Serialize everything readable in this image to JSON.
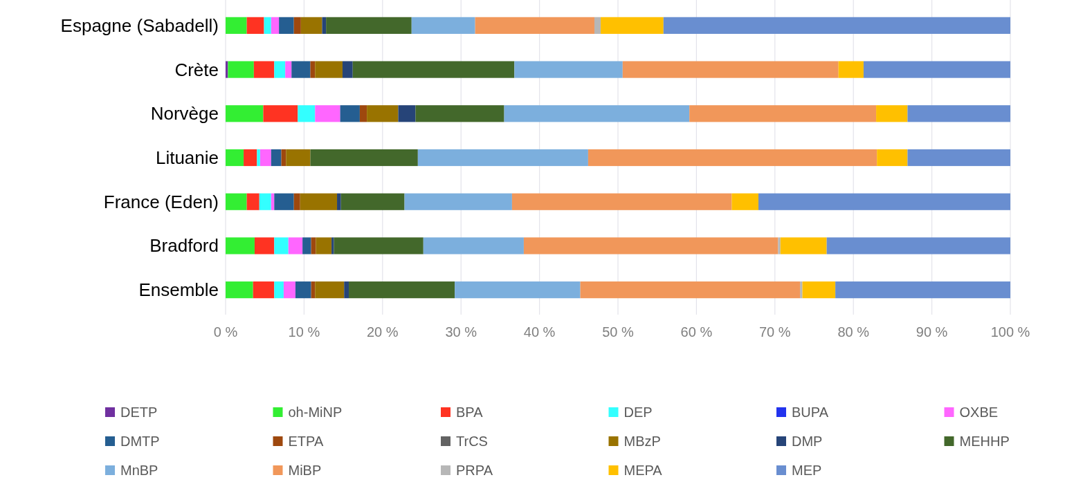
{
  "chart_data": {
    "type": "bar",
    "orientation": "horizontal",
    "stacked": true,
    "categories": [
      "Espagne (Sabadell)",
      "Crète",
      "Norvège",
      "Lituanie",
      "France (Eden)",
      "Bradford",
      "Ensemble"
    ],
    "xlim": [
      0,
      100
    ],
    "xticks": [
      {
        "value": 0,
        "label": "0 %"
      },
      {
        "value": 10,
        "label": "10 %"
      },
      {
        "value": 20,
        "label": "20 %"
      },
      {
        "value": 30,
        "label": "30 %"
      },
      {
        "value": 40,
        "label": "40 %"
      },
      {
        "value": 50,
        "label": "50 %"
      },
      {
        "value": 60,
        "label": "60 %"
      },
      {
        "value": 70,
        "label": "70 %"
      },
      {
        "value": 80,
        "label": "80 %"
      },
      {
        "value": 90,
        "label": "90 %"
      },
      {
        "value": 100,
        "label": "100 %"
      }
    ],
    "grid": "x",
    "legend": "bottom",
    "series": [
      {
        "name": "DETP",
        "color": "#7030a0",
        "values": [
          0,
          0.3,
          0,
          0,
          0,
          0,
          0
        ]
      },
      {
        "name": "oh-MiNP",
        "color": "#33ee33",
        "values": [
          2.7,
          3.3,
          4.8,
          2.3,
          2.7,
          3.7,
          3.5
        ]
      },
      {
        "name": "BPA",
        "color": "#ff3322",
        "values": [
          2.2,
          2.6,
          4.4,
          1.7,
          1.6,
          2.5,
          2.7
        ]
      },
      {
        "name": "DEP",
        "color": "#33ffff",
        "values": [
          0.9,
          1.4,
          2.2,
          0.4,
          1.5,
          1.8,
          1.2
        ]
      },
      {
        "name": "BUPA",
        "color": "#2233ee",
        "values": [
          0,
          0,
          0,
          0,
          0,
          0,
          0
        ]
      },
      {
        "name": "OXBE",
        "color": "#ff66ff",
        "values": [
          1.0,
          0.8,
          3.2,
          1.4,
          0.4,
          1.8,
          1.5
        ]
      },
      {
        "name": "DMTP",
        "color": "#255e91",
        "values": [
          1.9,
          2.4,
          2.5,
          1.3,
          2.5,
          1.1,
          2.0
        ]
      },
      {
        "name": "ETPA",
        "color": "#9e480e",
        "values": [
          0.9,
          0.6,
          0.9,
          0.6,
          0.8,
          0.6,
          0.5
        ]
      },
      {
        "name": "TrCS",
        "color": "#636363",
        "values": [
          0,
          0,
          0,
          0,
          0,
          0,
          0
        ]
      },
      {
        "name": "MBzP",
        "color": "#997300",
        "values": [
          2.7,
          3.5,
          4.0,
          3.1,
          4.7,
          2.0,
          3.7
        ]
      },
      {
        "name": "DMP",
        "color": "#264478",
        "values": [
          0.5,
          1.3,
          2.2,
          0,
          0.5,
          0.3,
          0.6
        ]
      },
      {
        "name": "MEHHP",
        "color": "#43682b",
        "values": [
          10.9,
          20.6,
          11.3,
          13.7,
          8.1,
          11.4,
          13.5
        ]
      },
      {
        "name": "MnBP",
        "color": "#7cafdd",
        "values": [
          8.1,
          13.8,
          23.6,
          21.7,
          13.7,
          12.8,
          16.0
        ]
      },
      {
        "name": "MiBP",
        "color": "#f1975a",
        "values": [
          15.2,
          27.5,
          23.8,
          36.8,
          28.0,
          32.4,
          28.0
        ]
      },
      {
        "name": "PRPA",
        "color": "#b7b7b7",
        "values": [
          0.8,
          0,
          0,
          0,
          0,
          0.3,
          0.3
        ]
      },
      {
        "name": "MEPA",
        "color": "#ffc000",
        "values": [
          8.0,
          3.2,
          4.0,
          3.9,
          3.4,
          5.9,
          4.2
        ]
      },
      {
        "name": "MEP",
        "color": "#698ed0",
        "values": [
          44.2,
          18.7,
          13.1,
          13.1,
          32.1,
          23.4,
          22.3
        ]
      }
    ]
  }
}
